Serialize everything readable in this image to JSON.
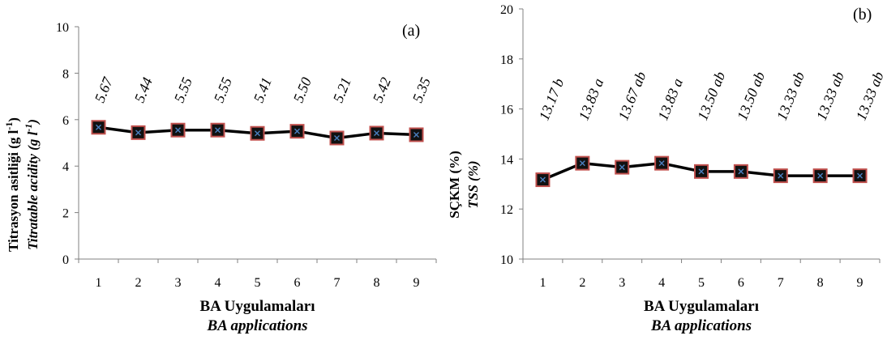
{
  "chart_data": [
    {
      "type": "line",
      "panel_label": "(a)",
      "categories": [
        "1",
        "2",
        "3",
        "4",
        "5",
        "6",
        "7",
        "8",
        "9"
      ],
      "values": [
        5.67,
        5.44,
        5.55,
        5.55,
        5.41,
        5.5,
        5.21,
        5.42,
        5.35
      ],
      "data_labels": [
        "5.67",
        "5.44",
        "5.55",
        "5.55",
        "5.41",
        "5.50",
        "5.21",
        "5.42",
        "5.35"
      ],
      "ylabel": "Titrasyon asitliği (g l-1)",
      "ylabel_en": "Titratable acidity (g l-1)",
      "xlabel": "BA Uygulamaları",
      "xlabel_en": "BA applications",
      "ylim": [
        0,
        10
      ],
      "yticks": [
        "0",
        "2",
        "4",
        "6",
        "8",
        "10"
      ],
      "grid": false,
      "marker": "square",
      "line_color": "#000000",
      "marker_edge_color": "#c0504d"
    },
    {
      "type": "line",
      "panel_label": "(b)",
      "categories": [
        "1",
        "2",
        "3",
        "4",
        "5",
        "6",
        "7",
        "8",
        "9"
      ],
      "values": [
        13.17,
        13.83,
        13.67,
        13.83,
        13.5,
        13.5,
        13.33,
        13.33,
        13.33
      ],
      "data_labels": [
        "13.17 b",
        "13.83 a",
        "13.67 ab",
        "13.83 a",
        "13.50 ab",
        "13.50 ab",
        "13.33 ab",
        "13.33 ab",
        "13.33 ab"
      ],
      "ylabel": "SÇKM (%)",
      "ylabel_en": "TSS (%)",
      "xlabel": "BA Uygulamaları",
      "xlabel_en": "BA applications",
      "ylim": [
        10,
        20
      ],
      "yticks": [
        "10",
        "12",
        "14",
        "16",
        "18",
        "20"
      ],
      "grid": false,
      "marker": "square",
      "line_color": "#000000",
      "marker_edge_color": "#c0504d"
    }
  ]
}
